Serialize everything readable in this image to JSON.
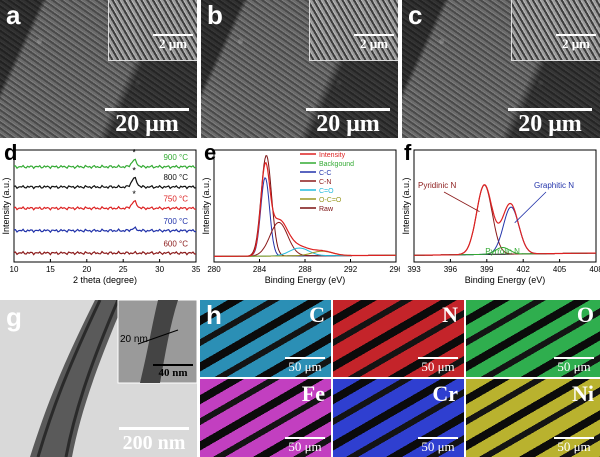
{
  "sem_panels": [
    {
      "letter": "a",
      "scale_main": "20 μm",
      "scale_inset": "2 μm"
    },
    {
      "letter": "b",
      "scale_main": "20 μm",
      "scale_inset": "2 μm"
    },
    {
      "letter": "c",
      "scale_main": "20 μm",
      "scale_inset": "2 μm"
    }
  ],
  "panel_g": {
    "letter": "g",
    "scale_main": "200 nm",
    "scale_inset": "40 nm",
    "measure_label": "20 nm"
  },
  "panel_h": {
    "letter": "h"
  },
  "maps": [
    {
      "element": "C",
      "scale": "50 μm",
      "color": "#2b8fb5"
    },
    {
      "element": "N",
      "scale": "50 μm",
      "color": "#c4242a"
    },
    {
      "element": "O",
      "scale": "50 μm",
      "color": "#2fae4e"
    },
    {
      "element": "Fe",
      "scale": "50 μm",
      "color": "#c23fc0"
    },
    {
      "element": "Cr",
      "scale": "50 μm",
      "color": "#2f3fd0"
    },
    {
      "element": "Ni",
      "scale": "50 μm",
      "color": "#b9b22e"
    }
  ],
  "chart_data": [
    {
      "panel": "d",
      "type": "line",
      "xlabel": "2 theta (degree)",
      "ylabel": "Intensity (a.u.)",
      "xlim": [
        10,
        35
      ],
      "xticks": [
        10,
        15,
        20,
        25,
        30,
        35
      ],
      "peak_marker": "*",
      "peak_x": 26.5,
      "series": [
        {
          "name": "600 °C",
          "color": "#8b1a1a",
          "baseline": 0.08,
          "peak": 0.0
        },
        {
          "name": "700 °C",
          "color": "#2233aa",
          "baseline": 0.28,
          "peak": 0.02
        },
        {
          "name": "750 °C",
          "color": "#dd2222",
          "baseline": 0.48,
          "peak": 0.06
        },
        {
          "name": "800 °C",
          "color": "#111111",
          "baseline": 0.67,
          "peak": 0.08
        },
        {
          "name": "900 °C",
          "color": "#33aa33",
          "baseline": 0.85,
          "peak": 0.06
        }
      ]
    },
    {
      "panel": "e",
      "type": "line",
      "xlabel": "Binding Energy (eV)",
      "ylabel": "Intensity (a.u.)",
      "xlim": [
        280,
        296
      ],
      "xticks": [
        280,
        284,
        288,
        292,
        296
      ],
      "legend": [
        {
          "name": "Intensity",
          "color": "#dd2222"
        },
        {
          "name": "Backgound",
          "color": "#33aa33"
        },
        {
          "name": "C-C",
          "color": "#2233aa"
        },
        {
          "name": "C-N",
          "color": "#8b1a1a"
        },
        {
          "name": "C=O",
          "color": "#22bbdd"
        },
        {
          "name": "O-C=O",
          "color": "#999922"
        },
        {
          "name": "Raw",
          "color": "#7a1010"
        }
      ],
      "components": [
        {
          "name": "Raw",
          "color": "#7a1010",
          "center": 284.6,
          "height": 0.9,
          "width": 0.65
        },
        {
          "name": "C-C",
          "color": "#2233aa",
          "center": 284.5,
          "height": 0.7,
          "width": 0.55
        },
        {
          "name": "C-N",
          "color": "#8b1a1a",
          "center": 285.7,
          "height": 0.3,
          "width": 1.1
        },
        {
          "name": "C=O",
          "color": "#22bbdd",
          "center": 287.5,
          "height": 0.07,
          "width": 1.2
        },
        {
          "name": "O-C=O",
          "color": "#999922",
          "center": 289.5,
          "height": 0.04,
          "width": 1.3
        }
      ]
    },
    {
      "panel": "f",
      "type": "line",
      "xlabel": "Binding Energy (eV)",
      "ylabel": "Intensity (a.u.)",
      "xlim": [
        393,
        408
      ],
      "xticks": [
        393,
        396,
        399,
        402,
        405,
        408
      ],
      "annotations": [
        "Pyridinic N",
        "Graphitic N",
        "Pyrrolic N"
      ],
      "components": [
        {
          "name": "Pyridinic N",
          "color": "#8b1a1a",
          "center": 398.8,
          "height": 0.62,
          "width": 0.9
        },
        {
          "name": "Graphitic N",
          "color": "#2233aa",
          "center": 401.0,
          "height": 0.42,
          "width": 0.9
        },
        {
          "name": "Pyrrolic N",
          "color": "#33aa33",
          "center": 400.3,
          "height": 0.06,
          "width": 0.8
        }
      ]
    }
  ]
}
